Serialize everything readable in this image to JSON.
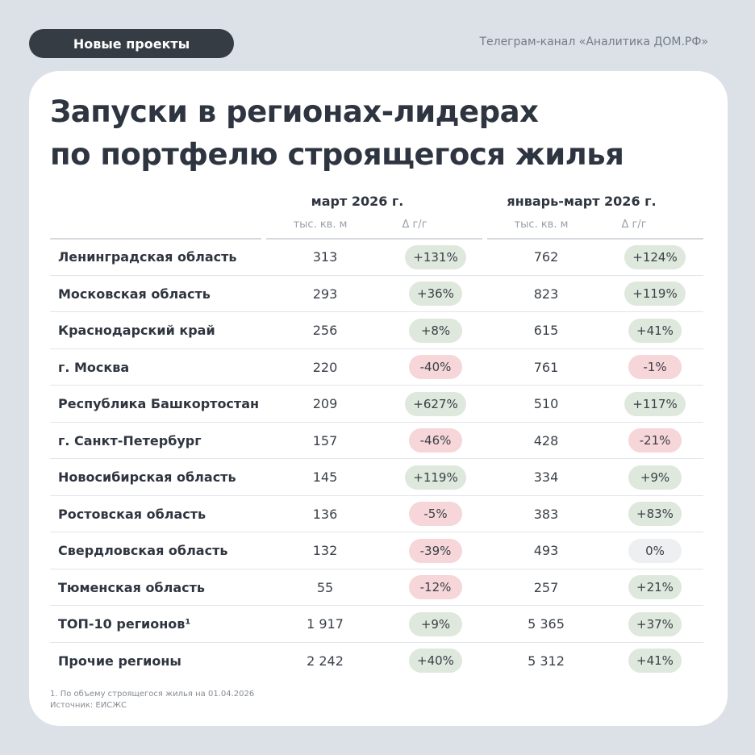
{
  "header": {
    "tag": "Новые проекты",
    "source": "Телеграм-канал «Аналитика ДОМ.РФ»"
  },
  "title": {
    "line1": "Запуски в регионах-лидерах",
    "line2": "по портфелю строящегося жилья"
  },
  "columns": {
    "group1": "март 2026 г.",
    "group2": "январь-март 2026 г.",
    "unit": "тыс. кв. м",
    "delta": "Δ г/г"
  },
  "rows": [
    {
      "name": "Ленинградская область",
      "v1": "313",
      "d1": "+131%",
      "v2": "762",
      "d2": "+124%"
    },
    {
      "name": "Московская область",
      "v1": "293",
      "d1": "+36%",
      "v2": "823",
      "d2": "+119%"
    },
    {
      "name": "Краснодарский край",
      "v1": "256",
      "d1": "+8%",
      "v2": "615",
      "d2": "+41%"
    },
    {
      "name": "г. Москва",
      "v1": "220",
      "d1": "-40%",
      "v2": "761",
      "d2": "-1%"
    },
    {
      "name": "Республика Башкортостан",
      "v1": "209",
      "d1": "+627%",
      "v2": "510",
      "d2": "+117%"
    },
    {
      "name": "г. Санкт-Петербург",
      "v1": "157",
      "d1": "-46%",
      "v2": "428",
      "d2": "-21%"
    },
    {
      "name": "Новосибирская область",
      "v1": "145",
      "d1": "+119%",
      "v2": "334",
      "d2": "+9%"
    },
    {
      "name": "Ростовская  область",
      "v1": "136",
      "d1": "-5%",
      "v2": "383",
      "d2": "+83%"
    },
    {
      "name": "Свердловская  область",
      "v1": "132",
      "d1": "-39%",
      "v2": "493",
      "d2": "0%"
    },
    {
      "name": "Тюменская область",
      "v1": "55",
      "d1": "-12%",
      "v2": "257",
      "d2": "+21%"
    },
    {
      "name": "ТОП-10 регионов¹",
      "v1": "1 917",
      "d1": "+9%",
      "v2": "5 365",
      "d2": "+37%"
    },
    {
      "name": "Прочие регионы",
      "v1": "2 242",
      "d1": "+40%",
      "v2": "5 312",
      "d2": "+41%"
    }
  ],
  "footnotes": {
    "note": "1. По объему строящегося жилья на 01.04.2026",
    "source": "Источник: ЕИСЖС"
  },
  "colors": {
    "positive": "#dfe8dd",
    "negative": "#f6d6d8",
    "neutral": "#eeeff0",
    "tag_bg": "#353c44",
    "page_bg": "#dce1e8"
  }
}
